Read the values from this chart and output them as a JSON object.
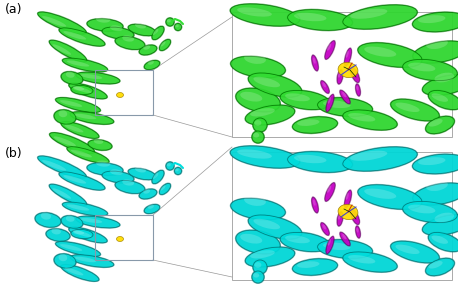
{
  "figure_width": 4.58,
  "figure_height": 2.85,
  "dpi": 100,
  "background_color": "#ffffff",
  "panel_a_label": "(a)",
  "panel_b_label": "(b)",
  "label_fontsize": 9,
  "protein_a_color": "#33dd33",
  "protein_a_dark": "#007700",
  "protein_a_mid": "#22bb22",
  "protein_b_color": "#00dddd",
  "protein_b_dark": "#007777",
  "protein_b_mid": "#00bbbb",
  "ligand_color": "#ffdd00",
  "residue_color": "#cc00cc",
  "box_edge_color": "#8899aa",
  "connector_color": "#999999",
  "zoom_border_color": "#aaaaaa",
  "white": "#ffffff"
}
